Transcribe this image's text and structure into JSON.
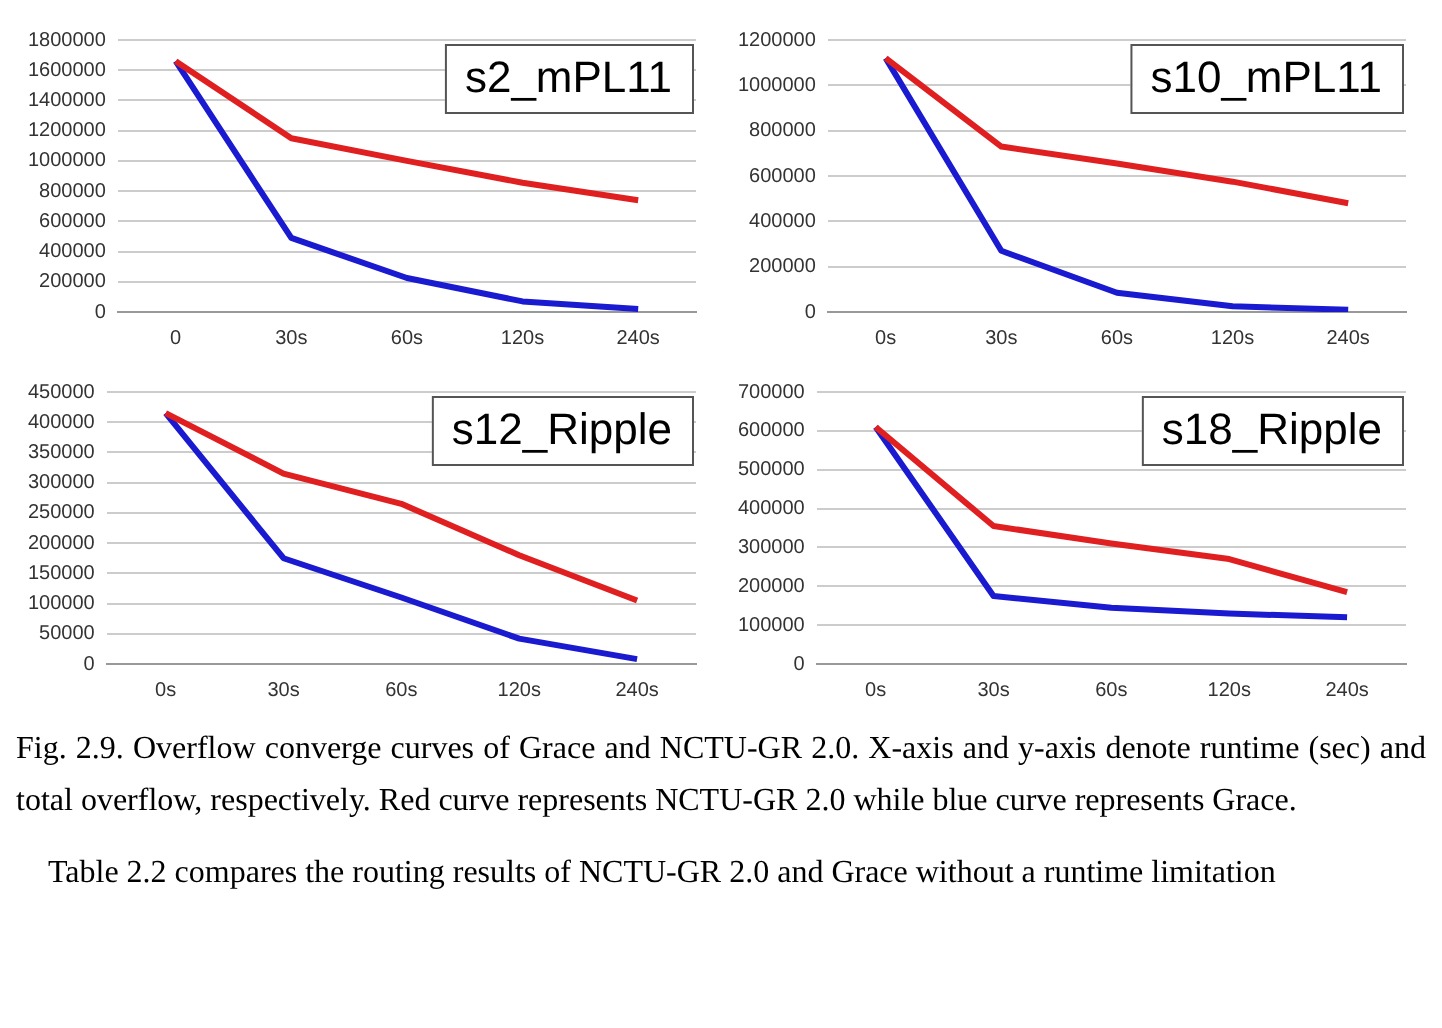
{
  "chart_data": [
    {
      "type": "line",
      "title": "s2_mPL11",
      "categories": [
        "0",
        "30s",
        "60s",
        "120s",
        "240s"
      ],
      "series": [
        {
          "color": "#e02020",
          "values": [
            1660000,
            1150000,
            1000000,
            855000,
            740000
          ]
        },
        {
          "color": "#1a1ad0",
          "values": [
            1660000,
            490000,
            225000,
            70000,
            20000
          ]
        }
      ],
      "ylim": [
        0,
        1800000
      ],
      "yticks": [
        0,
        200000,
        400000,
        600000,
        800000,
        1000000,
        1200000,
        1400000,
        1600000,
        1800000
      ],
      "grid": "y",
      "legend": false,
      "marker": "none",
      "line_style": "solid"
    },
    {
      "type": "line",
      "title": "s10_mPL11",
      "categories": [
        "0s",
        "30s",
        "60s",
        "120s",
        "240s"
      ],
      "series": [
        {
          "color": "#e02020",
          "values": [
            1120000,
            730000,
            655000,
            575000,
            480000
          ]
        },
        {
          "color": "#1a1ad0",
          "values": [
            1120000,
            270000,
            85000,
            25000,
            10000
          ]
        }
      ],
      "ylim": [
        0,
        1200000
      ],
      "yticks": [
        0,
        200000,
        400000,
        600000,
        800000,
        1000000,
        1200000
      ],
      "grid": "y",
      "legend": false,
      "marker": "none",
      "line_style": "solid"
    },
    {
      "type": "line",
      "title": "s12_Ripple",
      "categories": [
        "0s",
        "30s",
        "60s",
        "120s",
        "240s"
      ],
      "series": [
        {
          "color": "#e02020",
          "values": [
            415000,
            315000,
            265000,
            180000,
            105000
          ]
        },
        {
          "color": "#1a1ad0",
          "values": [
            415000,
            175000,
            110000,
            42000,
            8000
          ]
        }
      ],
      "ylim": [
        0,
        450000
      ],
      "yticks": [
        0,
        50000,
        100000,
        150000,
        200000,
        250000,
        300000,
        350000,
        400000,
        450000
      ],
      "grid": "y",
      "legend": false,
      "marker": "none",
      "line_style": "solid"
    },
    {
      "type": "line",
      "title": "s18_Ripple",
      "categories": [
        "0s",
        "30s",
        "60s",
        "120s",
        "240s"
      ],
      "series": [
        {
          "color": "#e02020",
          "values": [
            610000,
            355000,
            310000,
            270000,
            185000
          ]
        },
        {
          "color": "#1a1ad0",
          "values": [
            610000,
            175000,
            145000,
            130000,
            120000
          ]
        }
      ],
      "ylim": [
        0,
        700000
      ],
      "yticks": [
        0,
        100000,
        200000,
        300000,
        400000,
        500000,
        600000,
        700000
      ],
      "grid": "y",
      "legend": false,
      "marker": "none",
      "line_style": "solid",
      "annotations": [
        "Fig. 2.9. Overflow converge curves of Grace and NCTU-GR 2.0. X-axis and y-axis denote runtime (sec) and total overflow, respectively. Red curve represents NCTU-GR 2.0 while blue curve represents Grace.",
        "Table 2.2 compares the routing results of NCTU-GR 2.0 and Grace without a runtime limitation"
      ]
    }
  ]
}
